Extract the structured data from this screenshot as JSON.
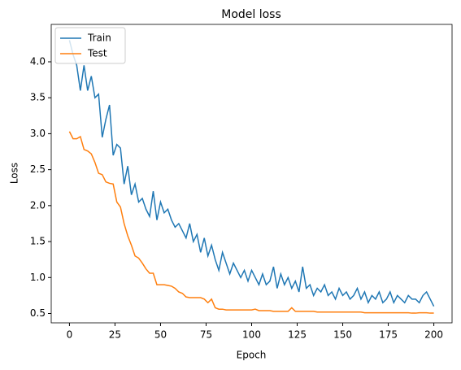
{
  "chart_data": {
    "type": "line",
    "title": "Model loss",
    "x_label": "Epoch",
    "y_label": "Loss",
    "x": [
      0,
      2,
      4,
      6,
      8,
      10,
      12,
      14,
      16,
      18,
      20,
      22,
      24,
      26,
      28,
      30,
      32,
      34,
      36,
      38,
      40,
      42,
      44,
      46,
      48,
      50,
      52,
      54,
      56,
      58,
      60,
      62,
      64,
      66,
      68,
      70,
      72,
      74,
      76,
      78,
      80,
      82,
      84,
      86,
      88,
      90,
      92,
      94,
      96,
      98,
      100,
      102,
      104,
      106,
      108,
      110,
      112,
      114,
      116,
      118,
      120,
      122,
      124,
      126,
      128,
      130,
      132,
      134,
      136,
      138,
      140,
      142,
      144,
      146,
      148,
      150,
      152,
      154,
      156,
      158,
      160,
      162,
      164,
      166,
      168,
      170,
      172,
      174,
      176,
      178,
      180,
      182,
      184,
      186,
      188,
      190,
      192,
      194,
      196,
      198,
      200
    ],
    "series": [
      {
        "name": "Train",
        "color": "#1f77b4",
        "values": [
          4.3,
          4.1,
          3.95,
          3.6,
          3.95,
          3.6,
          3.8,
          3.5,
          3.55,
          2.95,
          3.2,
          3.4,
          2.7,
          2.85,
          2.8,
          2.3,
          2.55,
          2.15,
          2.3,
          2.05,
          2.1,
          1.95,
          1.85,
          2.2,
          1.8,
          2.05,
          1.9,
          1.95,
          1.8,
          1.7,
          1.75,
          1.65,
          1.55,
          1.75,
          1.5,
          1.6,
          1.35,
          1.55,
          1.3,
          1.45,
          1.25,
          1.1,
          1.35,
          1.2,
          1.05,
          1.2,
          1.1,
          1.0,
          1.1,
          0.95,
          1.1,
          1.0,
          0.9,
          1.05,
          0.9,
          0.95,
          1.15,
          0.85,
          1.05,
          0.9,
          1.0,
          0.85,
          0.95,
          0.8,
          1.15,
          0.85,
          0.9,
          0.75,
          0.85,
          0.8,
          0.9,
          0.75,
          0.8,
          0.7,
          0.85,
          0.75,
          0.8,
          0.7,
          0.75,
          0.85,
          0.7,
          0.8,
          0.65,
          0.75,
          0.7,
          0.8,
          0.65,
          0.7,
          0.8,
          0.65,
          0.75,
          0.7,
          0.65,
          0.75,
          0.7,
          0.7,
          0.65,
          0.75,
          0.8,
          0.7,
          0.6
        ]
      },
      {
        "name": "Test",
        "color": "#ff7f0e",
        "values": [
          3.03,
          2.93,
          2.93,
          2.96,
          2.78,
          2.76,
          2.72,
          2.6,
          2.45,
          2.43,
          2.33,
          2.31,
          2.3,
          2.05,
          1.98,
          1.75,
          1.58,
          1.45,
          1.3,
          1.27,
          1.2,
          1.12,
          1.06,
          1.06,
          0.9,
          0.9,
          0.9,
          0.89,
          0.88,
          0.85,
          0.8,
          0.78,
          0.73,
          0.72,
          0.72,
          0.72,
          0.72,
          0.7,
          0.65,
          0.7,
          0.58,
          0.56,
          0.56,
          0.55,
          0.55,
          0.55,
          0.55,
          0.55,
          0.55,
          0.55,
          0.55,
          0.56,
          0.54,
          0.54,
          0.54,
          0.54,
          0.53,
          0.53,
          0.53,
          0.53,
          0.53,
          0.58,
          0.53,
          0.53,
          0.53,
          0.53,
          0.53,
          0.53,
          0.52,
          0.52,
          0.52,
          0.52,
          0.52,
          0.52,
          0.52,
          0.52,
          0.52,
          0.52,
          0.52,
          0.52,
          0.52,
          0.51,
          0.51,
          0.51,
          0.51,
          0.51,
          0.51,
          0.51,
          0.51,
          0.51,
          0.51,
          0.51,
          0.51,
          0.51,
          0.505,
          0.505,
          0.51,
          0.51,
          0.51,
          0.505,
          0.505
        ]
      }
    ],
    "xlim": [
      -10,
      210
    ],
    "ylim": [
      0.37,
      4.52
    ],
    "xticks": [
      0,
      25,
      50,
      75,
      100,
      125,
      150,
      175,
      200
    ],
    "yticks": [
      0.5,
      {
        "value": 1.0,
        "label": "1.0"
      },
      1.5,
      {
        "value": 2.0,
        "label": "2.0"
      },
      2.5,
      {
        "value": 3.0,
        "label": "3.0"
      },
      3.5,
      {
        "value": 4.0,
        "label": "4.0"
      }
    ],
    "legend": "upper left"
  }
}
